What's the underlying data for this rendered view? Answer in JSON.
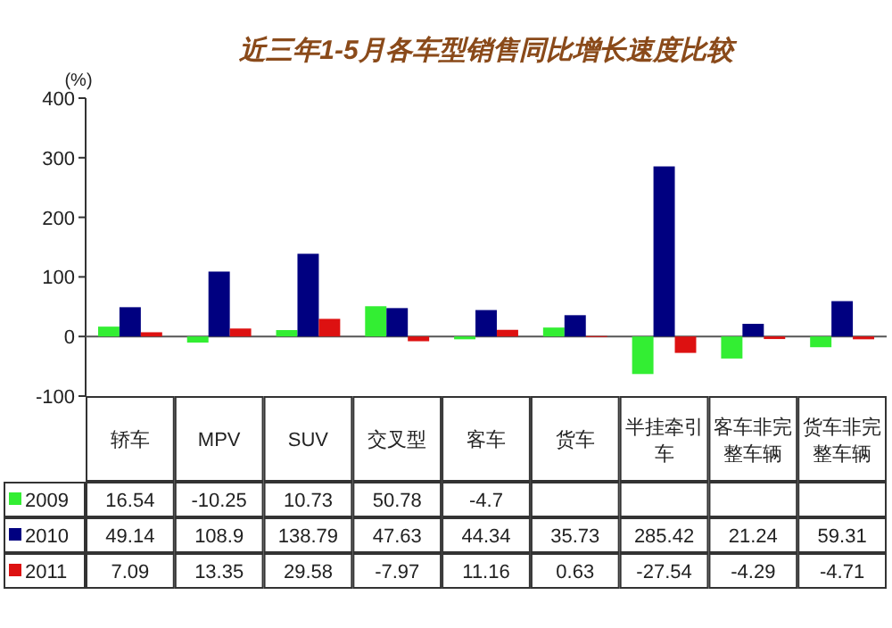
{
  "chart_data": {
    "type": "bar",
    "title": "近三年1-5月各车型销售同比增长速度比较",
    "ylabel": "(%)",
    "categories": [
      "轿车",
      "MPV",
      "SUV",
      "交叉型",
      "客车",
      "货车",
      "半挂牵引车",
      "客车非完整车辆",
      "货车非完整车辆"
    ],
    "series": [
      {
        "name": "2009",
        "color": "#33ee33",
        "values": [
          16.54,
          -10.25,
          10.73,
          50.78,
          -4.7,
          15,
          -63,
          -37,
          -18
        ],
        "value_labels": [
          "16.54",
          "-10.25",
          "10.73",
          "50.78",
          "-4.7",
          null,
          null,
          null,
          null
        ]
      },
      {
        "name": "2010",
        "color": "#000080",
        "values": [
          49.14,
          108.9,
          138.79,
          47.63,
          44.34,
          35.73,
          285.42,
          21.24,
          59.31
        ],
        "value_labels": [
          "49.14",
          "108.9",
          "138.79",
          "47.63",
          "44.34",
          "35.73",
          "285.42",
          "21.24",
          "59.31"
        ]
      },
      {
        "name": "2011",
        "color": "#dd1111",
        "values": [
          7.09,
          13.35,
          29.58,
          -7.97,
          11.16,
          0.63,
          -27.54,
          -4.29,
          -4.71
        ],
        "value_labels": [
          "7.09",
          "13.35",
          "29.58",
          "-7.97",
          "11.16",
          "0.63",
          "-27.54",
          "-4.29",
          "-4.71"
        ]
      }
    ],
    "ylim": [
      -100,
      400
    ],
    "yticks": [
      -100,
      0,
      100,
      200,
      300,
      400
    ],
    "legend": "bottom left"
  }
}
